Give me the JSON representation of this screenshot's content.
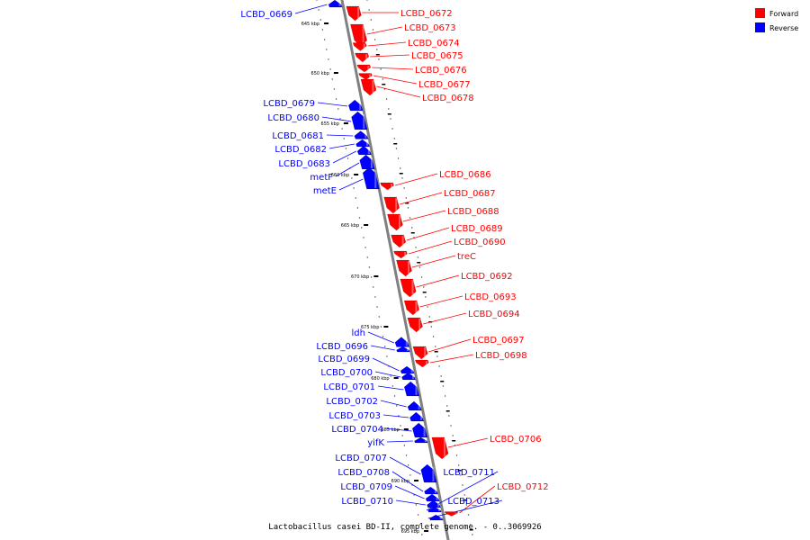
{
  "caption": "Lactobacillus casei BD-II, complete genome. - 0..3069926",
  "legend": [
    {
      "label": "Forward",
      "color": "#ff0000"
    },
    {
      "label": "Reverse",
      "color": "#0000ff"
    }
  ],
  "colors": {
    "forward": "#ff0000",
    "reverse": "#0000ff",
    "backbone": "#808080"
  },
  "ticks": [
    "645 kbp",
    "650 kbp",
    "655 kbp",
    "660 kbp",
    "665 kbp",
    "670 kbp",
    "675 kbp",
    "680 kbp",
    "685 kbp",
    "690 kbp",
    "695 kbp"
  ],
  "genes": [
    {
      "name": "LCBD_0669",
      "strand": "reverse"
    },
    {
      "name": "LCBD_0672",
      "strand": "forward"
    },
    {
      "name": "LCBD_0673",
      "strand": "forward"
    },
    {
      "name": "LCBD_0674",
      "strand": "forward"
    },
    {
      "name": "LCBD_0675",
      "strand": "forward"
    },
    {
      "name": "LCBD_0676",
      "strand": "forward"
    },
    {
      "name": "LCBD_0677",
      "strand": "forward"
    },
    {
      "name": "LCBD_0678",
      "strand": "forward"
    },
    {
      "name": "LCBD_0679",
      "strand": "reverse"
    },
    {
      "name": "LCBD_0680",
      "strand": "reverse"
    },
    {
      "name": "LCBD_0681",
      "strand": "reverse"
    },
    {
      "name": "LCBD_0682",
      "strand": "reverse"
    },
    {
      "name": "LCBD_0683",
      "strand": "reverse"
    },
    {
      "name": "metF",
      "strand": "reverse"
    },
    {
      "name": "metE",
      "strand": "reverse"
    },
    {
      "name": "LCBD_0686",
      "strand": "forward"
    },
    {
      "name": "LCBD_0687",
      "strand": "forward"
    },
    {
      "name": "LCBD_0688",
      "strand": "forward"
    },
    {
      "name": "LCBD_0689",
      "strand": "forward"
    },
    {
      "name": "LCBD_0690",
      "strand": "forward"
    },
    {
      "name": "treC",
      "strand": "forward"
    },
    {
      "name": "LCBD_0692",
      "strand": "forward"
    },
    {
      "name": "LCBD_0693",
      "strand": "forward"
    },
    {
      "name": "LCBD_0694",
      "strand": "forward"
    },
    {
      "name": "ldh",
      "strand": "reverse"
    },
    {
      "name": "LCBD_0696",
      "strand": "reverse"
    },
    {
      "name": "LCBD_0697",
      "strand": "forward"
    },
    {
      "name": "LCBD_0698",
      "strand": "forward"
    },
    {
      "name": "LCBD_0699",
      "strand": "reverse"
    },
    {
      "name": "LCBD_0700",
      "strand": "reverse"
    },
    {
      "name": "LCBD_0701",
      "strand": "reverse"
    },
    {
      "name": "LCBD_0702",
      "strand": "reverse"
    },
    {
      "name": "LCBD_0703",
      "strand": "reverse"
    },
    {
      "name": "LCBD_0704",
      "strand": "reverse"
    },
    {
      "name": "yifK",
      "strand": "reverse"
    },
    {
      "name": "LCBD_0706",
      "strand": "forward"
    },
    {
      "name": "LCBD_0707",
      "strand": "reverse"
    },
    {
      "name": "LCBD_0708",
      "strand": "reverse"
    },
    {
      "name": "LCBD_0709",
      "strand": "reverse"
    },
    {
      "name": "LCBD_0710",
      "strand": "reverse"
    },
    {
      "name": "LCBD_0711",
      "strand": "reverse"
    },
    {
      "name": "LCBD_0712",
      "strand": "forward"
    },
    {
      "name": "LCBD_0713",
      "strand": "reverse"
    }
  ]
}
